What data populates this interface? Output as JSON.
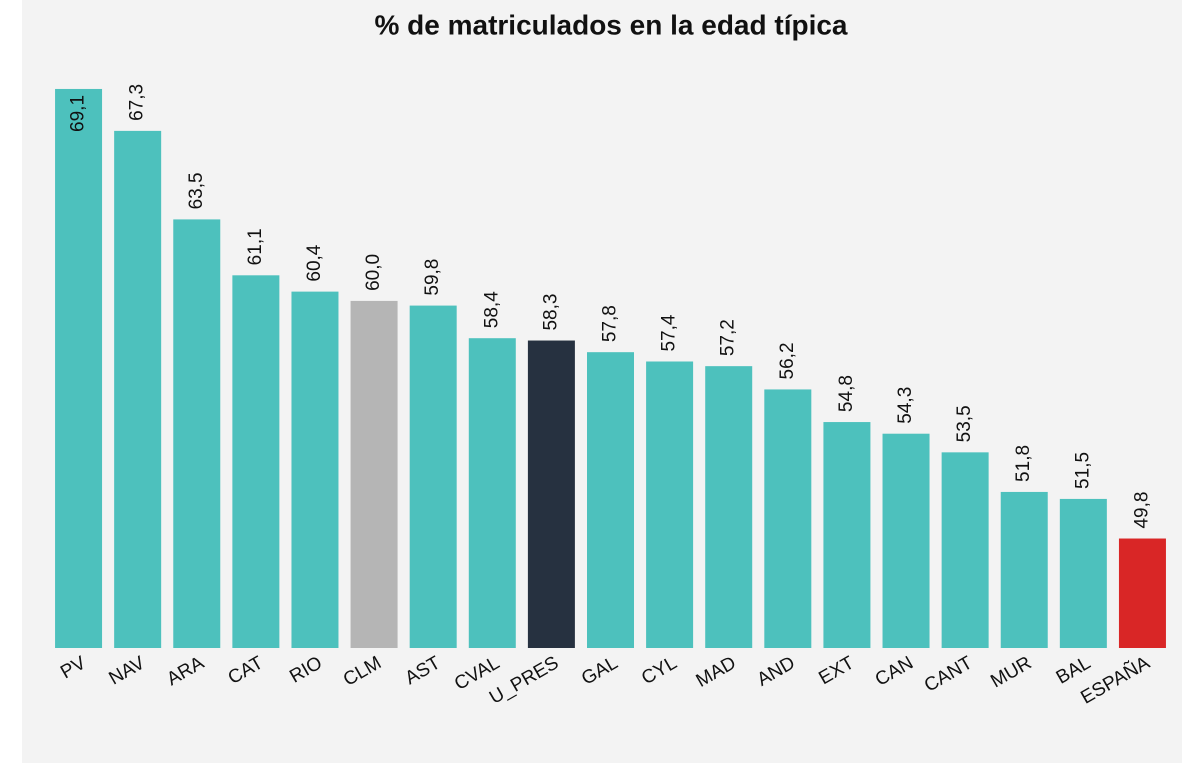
{
  "chart_data": {
    "type": "bar",
    "title": "% de matriculados en la edad típica",
    "categories": [
      "PV",
      "NAV",
      "ARA",
      "CAT",
      "RIO",
      "CLM",
      "AST",
      "CVAL",
      "U_PRES",
      "GAL",
      "CYL",
      "MAD",
      "AND",
      "EXT",
      "CAN",
      "CANT",
      "MUR",
      "BAL",
      "ESPAÑA"
    ],
    "values": [
      69.1,
      67.3,
      63.5,
      61.1,
      60.4,
      60.0,
      59.8,
      58.4,
      58.3,
      57.8,
      57.4,
      57.2,
      56.2,
      54.8,
      54.3,
      53.5,
      51.8,
      51.5,
      49.8
    ],
    "value_labels": [
      "69,1",
      "67,3",
      "63,5",
      "61,1",
      "60,4",
      "60,0",
      "59,8",
      "58,4",
      "58,3",
      "57,8",
      "57,4",
      "57,2",
      "56,2",
      "54,8",
      "54,3",
      "53,5",
      "51,8",
      "51,5",
      "49,8"
    ],
    "colors": [
      "#4dc1bd",
      "#4dc1bd",
      "#4dc1bd",
      "#4dc1bd",
      "#4dc1bd",
      "#b5b5b5",
      "#4dc1bd",
      "#4dc1bd",
      "#263140",
      "#4dc1bd",
      "#4dc1bd",
      "#4dc1bd",
      "#4dc1bd",
      "#4dc1bd",
      "#4dc1bd",
      "#4dc1bd",
      "#4dc1bd",
      "#4dc1bd",
      "#d92626"
    ],
    "ylim": [
      45.1,
      70
    ]
  }
}
